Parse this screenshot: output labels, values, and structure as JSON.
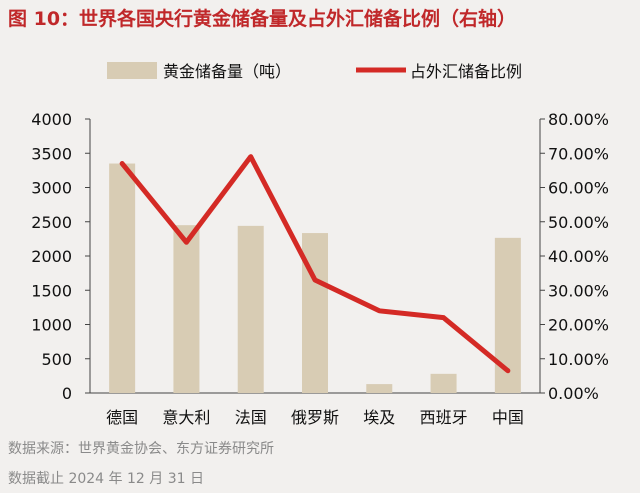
{
  "header": {
    "title": "图 10：世界各国央行黄金储备量及占外汇储备比例（右轴）"
  },
  "footer": {
    "source": "数据来源：世界黄金协会、东方证券研究所",
    "date_note": "数据截止 2024 年 12 月 31 日"
  },
  "chart_data": {
    "type": "bar",
    "categories": [
      "德国",
      "意大利",
      "法国",
      "俄罗斯",
      "埃及",
      "西班牙",
      "中国"
    ],
    "series": [
      {
        "name": "黄金储备量（吨）",
        "type": "bar",
        "axis": "left",
        "color": "#d8ccb4",
        "values": [
          3350,
          2450,
          2440,
          2335,
          130,
          280,
          2265
        ]
      },
      {
        "name": "占外汇储备比例",
        "type": "line",
        "axis": "right",
        "color": "#d42a25",
        "values": [
          0.67,
          0.44,
          0.69,
          0.33,
          0.24,
          0.22,
          0.065
        ]
      }
    ],
    "y_left": {
      "ylim": [
        0,
        4000
      ],
      "ticks": [
        "0",
        "500",
        "1000",
        "1500",
        "2000",
        "2500",
        "3000",
        "3500",
        "4000"
      ]
    },
    "y_right": {
      "ylim": [
        0,
        0.8
      ],
      "ticks": [
        "0.00%",
        "10.00%",
        "20.00%",
        "30.00%",
        "40.00%",
        "50.00%",
        "60.00%",
        "70.00%",
        "80.00%"
      ]
    },
    "legend_position": "top-center",
    "grid": false
  }
}
